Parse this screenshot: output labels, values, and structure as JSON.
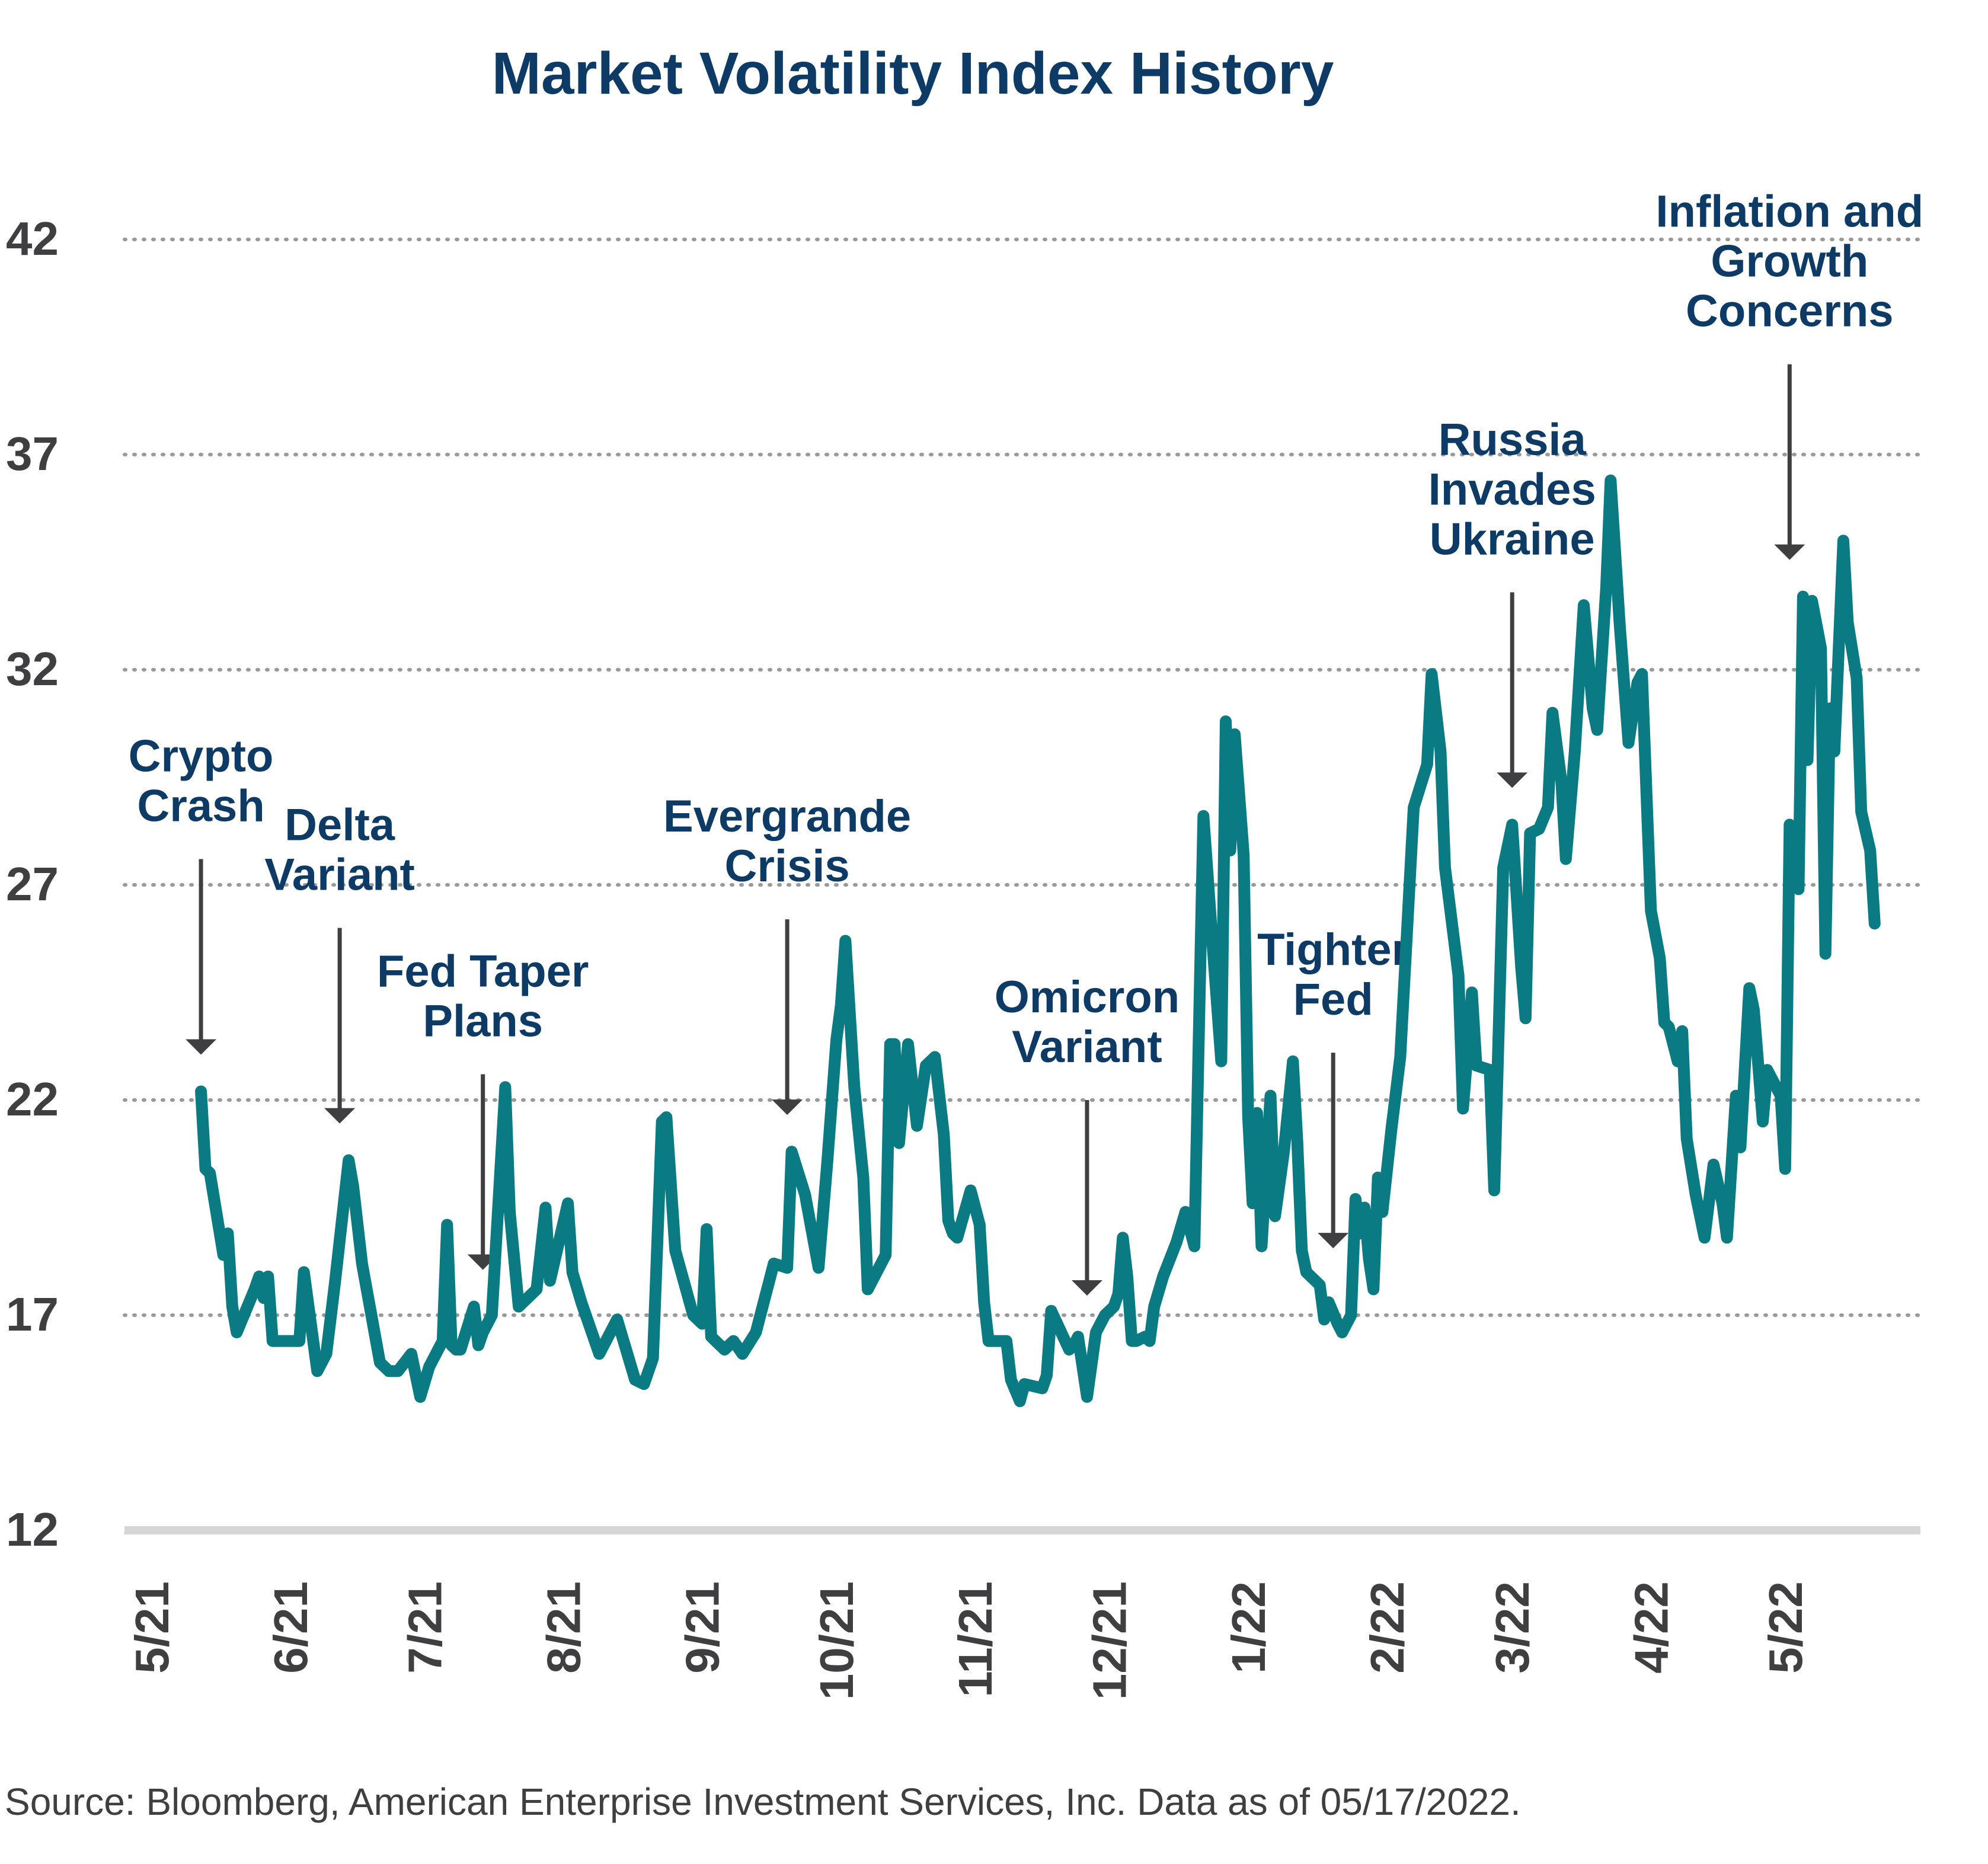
{
  "chart_data": {
    "type": "line",
    "title": "Market Volatility Index History",
    "xlabel": "",
    "ylabel": "",
    "ylim": [
      12,
      42
    ],
    "yticks": [
      "42",
      "37",
      "32",
      "27",
      "22",
      "17",
      "12"
    ],
    "ytick_values": [
      42,
      37,
      32,
      27,
      22,
      17,
      12
    ],
    "xticks": [
      "5/21",
      "6/21",
      "7/21",
      "8/21",
      "9/21",
      "10/21",
      "11/21",
      "12/21",
      "1/22",
      "2/22",
      "3/22",
      "4/22",
      "5/22"
    ],
    "xlim": [
      "2021-05-01",
      "2022-06-15"
    ],
    "grid": true,
    "line_color": "#0a7b83",
    "title_color": "#0d3b66",
    "annotations": [
      {
        "lines": [
          "Crypto",
          "Crash"
        ],
        "date": "2021-05-12"
      },
      {
        "lines": [
          "Delta",
          "Variant"
        ],
        "date": "2021-06-12"
      },
      {
        "lines": [
          "Fed Taper",
          "Plans"
        ],
        "date": "2021-07-14"
      },
      {
        "lines": [
          "Evergrande",
          "Crisis"
        ],
        "date": "2021-09-20"
      },
      {
        "lines": [
          "Omicron",
          "Variant"
        ],
        "date": "2021-11-26"
      },
      {
        "lines": [
          "Tighter",
          "Fed"
        ],
        "date": "2022-01-20"
      },
      {
        "lines": [
          "Russia",
          "Invades",
          "Ukraine"
        ],
        "date": "2022-03-01"
      },
      {
        "lines": [
          "Inflation and",
          "Growth",
          "Concerns"
        ],
        "date": "2022-05-02"
      }
    ],
    "series": [
      {
        "values": [
          [
            "2021-05-12",
            22.2
          ],
          [
            "2021-05-13",
            20.4
          ],
          [
            "2021-05-14",
            20.3
          ],
          [
            "2021-05-17",
            18.4
          ],
          [
            "2021-05-18",
            18.9
          ],
          [
            "2021-05-19",
            17.2
          ],
          [
            "2021-05-20",
            16.6
          ],
          [
            "2021-05-24",
            17.6
          ],
          [
            "2021-05-25",
            17.9
          ],
          [
            "2021-05-26",
            17.4
          ],
          [
            "2021-05-27",
            17.9
          ],
          [
            "2021-05-28",
            16.4
          ],
          [
            "2021-06-01",
            16.4
          ],
          [
            "2021-06-03",
            16.4
          ],
          [
            "2021-06-04",
            18.0
          ],
          [
            "2021-06-07",
            15.7
          ],
          [
            "2021-06-09",
            16.1
          ],
          [
            "2021-06-11",
            17.8
          ],
          [
            "2021-06-14",
            20.6
          ],
          [
            "2021-06-15",
            20.0
          ],
          [
            "2021-06-17",
            18.2
          ],
          [
            "2021-06-21",
            15.9
          ],
          [
            "2021-06-23",
            15.7
          ],
          [
            "2021-06-25",
            15.7
          ],
          [
            "2021-06-28",
            16.1
          ],
          [
            "2021-06-30",
            15.1
          ],
          [
            "2021-07-02",
            15.8
          ],
          [
            "2021-07-05",
            16.4
          ],
          [
            "2021-07-06",
            19.1
          ],
          [
            "2021-07-07",
            16.3
          ],
          [
            "2021-07-08",
            16.2
          ],
          [
            "2021-07-09",
            16.2
          ],
          [
            "2021-07-12",
            17.2
          ],
          [
            "2021-07-13",
            16.3
          ],
          [
            "2021-07-14",
            16.6
          ],
          [
            "2021-07-16",
            17.0
          ],
          [
            "2021-07-19",
            22.3
          ],
          [
            "2021-07-20",
            19.4
          ],
          [
            "2021-07-22",
            17.2
          ],
          [
            "2021-07-26",
            17.6
          ],
          [
            "2021-07-28",
            19.5
          ],
          [
            "2021-07-29",
            17.8
          ],
          [
            "2021-08-02",
            19.6
          ],
          [
            "2021-08-03",
            18.0
          ],
          [
            "2021-08-05",
            17.3
          ],
          [
            "2021-08-09",
            16.1
          ],
          [
            "2021-08-11",
            16.5
          ],
          [
            "2021-08-13",
            16.9
          ],
          [
            "2021-08-17",
            15.5
          ],
          [
            "2021-08-19",
            15.4
          ],
          [
            "2021-08-21",
            16.0
          ],
          [
            "2021-08-23",
            21.5
          ],
          [
            "2021-08-24",
            21.6
          ],
          [
            "2021-08-26",
            18.5
          ],
          [
            "2021-08-30",
            17.0
          ],
          [
            "2021-09-01",
            16.8
          ],
          [
            "2021-09-02",
            19.0
          ],
          [
            "2021-09-03",
            16.5
          ],
          [
            "2021-09-06",
            16.2
          ],
          [
            "2021-09-08",
            16.4
          ],
          [
            "2021-09-10",
            16.1
          ],
          [
            "2021-09-13",
            16.6
          ],
          [
            "2021-09-17",
            18.2
          ],
          [
            "2021-09-20",
            18.1
          ],
          [
            "2021-09-21",
            20.8
          ],
          [
            "2021-09-24",
            19.8
          ],
          [
            "2021-09-27",
            18.1
          ],
          [
            "2021-09-29",
            20.6
          ],
          [
            "2021-10-01",
            23.4
          ],
          [
            "2021-10-02",
            24.2
          ],
          [
            "2021-10-03",
            25.7
          ],
          [
            "2021-10-05",
            22.3
          ],
          [
            "2021-10-07",
            20.2
          ],
          [
            "2021-10-08",
            17.6
          ],
          [
            "2021-10-12",
            18.4
          ],
          [
            "2021-10-13",
            23.3
          ],
          [
            "2021-10-14",
            23.3
          ],
          [
            "2021-10-15",
            21.0
          ],
          [
            "2021-10-17",
            23.3
          ],
          [
            "2021-10-19",
            21.4
          ],
          [
            "2021-10-21",
            22.8
          ],
          [
            "2021-10-23",
            23.0
          ],
          [
            "2021-10-25",
            21.2
          ],
          [
            "2021-10-26",
            19.2
          ],
          [
            "2021-10-27",
            18.9
          ],
          [
            "2021-10-28",
            18.8
          ],
          [
            "2021-10-31",
            19.9
          ],
          [
            "2021-11-02",
            19.1
          ],
          [
            "2021-11-03",
            17.3
          ],
          [
            "2021-11-04",
            16.4
          ],
          [
            "2021-11-08",
            16.4
          ],
          [
            "2021-11-09",
            15.5
          ],
          [
            "2021-11-11",
            15.0
          ],
          [
            "2021-11-12",
            15.4
          ],
          [
            "2021-11-16",
            15.3
          ],
          [
            "2021-11-17",
            15.6
          ],
          [
            "2021-11-18",
            17.1
          ],
          [
            "2021-11-22",
            16.2
          ],
          [
            "2021-11-23",
            16.3
          ],
          [
            "2021-11-24",
            16.5
          ],
          [
            "2021-11-25",
            15.8
          ],
          [
            "2021-11-26",
            15.1
          ],
          [
            "2021-11-28",
            16.6
          ],
          [
            "2021-11-30",
            17.0
          ],
          [
            "2021-12-02",
            17.2
          ],
          [
            "2021-12-03",
            17.5
          ],
          [
            "2021-12-04",
            18.8
          ],
          [
            "2021-12-05",
            17.9
          ],
          [
            "2021-12-06",
            16.4
          ],
          [
            "2021-12-07",
            16.4
          ],
          [
            "2021-12-09",
            16.5
          ],
          [
            "2021-12-10",
            16.4
          ],
          [
            "2021-12-11",
            17.2
          ],
          [
            "2021-12-13",
            17.9
          ],
          [
            "2021-12-16",
            18.7
          ],
          [
            "2021-12-18",
            19.4
          ],
          [
            "2021-12-20",
            18.6
          ],
          [
            "2021-12-22",
            28.6
          ],
          [
            "2021-12-24",
            25.7
          ],
          [
            "2021-12-26",
            22.9
          ],
          [
            "2021-12-27",
            30.8
          ],
          [
            "2021-12-28",
            27.8
          ],
          [
            "2021-12-29",
            30.5
          ],
          [
            "2021-12-31",
            27.7
          ],
          [
            "2022-01-01",
            21.6
          ],
          [
            "2022-01-02",
            19.6
          ],
          [
            "2022-01-03",
            21.7
          ],
          [
            "2022-01-04",
            18.6
          ],
          [
            "2022-01-06",
            22.1
          ],
          [
            "2022-01-07",
            19.3
          ],
          [
            "2022-01-09",
            20.8
          ],
          [
            "2022-01-11",
            22.9
          ],
          [
            "2022-01-12",
            21.0
          ],
          [
            "2022-01-13",
            18.5
          ],
          [
            "2022-01-14",
            18.0
          ],
          [
            "2022-01-17",
            17.7
          ],
          [
            "2022-01-18",
            16.9
          ],
          [
            "2022-01-19",
            17.3
          ],
          [
            "2022-01-21",
            16.8
          ],
          [
            "2022-01-22",
            16.6
          ],
          [
            "2022-01-24",
            17.0
          ],
          [
            "2022-01-25",
            19.7
          ],
          [
            "2022-01-26",
            18.9
          ],
          [
            "2022-01-27",
            19.5
          ],
          [
            "2022-01-28",
            18.3
          ],
          [
            "2022-01-29",
            17.6
          ],
          [
            "2022-01-30",
            20.2
          ],
          [
            "2022-01-31",
            19.4
          ],
          [
            "2022-02-02",
            21.3
          ],
          [
            "2022-02-04",
            23.0
          ],
          [
            "2022-02-07",
            28.8
          ],
          [
            "2022-02-10",
            29.8
          ],
          [
            "2022-02-11",
            31.9
          ],
          [
            "2022-02-13",
            30.1
          ],
          [
            "2022-02-14",
            27.4
          ],
          [
            "2022-02-17",
            24.9
          ],
          [
            "2022-02-18",
            21.8
          ],
          [
            "2022-02-19",
            23.1
          ],
          [
            "2022-02-20",
            24.5
          ],
          [
            "2022-02-21",
            22.8
          ],
          [
            "2022-02-24",
            22.7
          ],
          [
            "2022-02-25",
            19.9
          ],
          [
            "2022-02-27",
            27.4
          ],
          [
            "2022-03-01",
            28.4
          ],
          [
            "2022-03-03",
            25.1
          ],
          [
            "2022-03-04",
            23.9
          ],
          [
            "2022-03-05",
            28.2
          ],
          [
            "2022-03-07",
            28.3
          ],
          [
            "2022-03-09",
            28.8
          ],
          [
            "2022-03-10",
            31.0
          ],
          [
            "2022-03-12",
            29.4
          ],
          [
            "2022-03-13",
            27.6
          ],
          [
            "2022-03-15",
            30.1
          ],
          [
            "2022-03-17",
            33.5
          ],
          [
            "2022-03-19",
            31.1
          ],
          [
            "2022-03-20",
            30.6
          ],
          [
            "2022-03-22",
            33.9
          ],
          [
            "2022-03-23",
            36.4
          ],
          [
            "2022-03-25",
            33.1
          ],
          [
            "2022-03-27",
            30.3
          ],
          [
            "2022-03-29",
            31.7
          ],
          [
            "2022-03-30",
            31.9
          ],
          [
            "2022-04-01",
            26.4
          ],
          [
            "2022-04-03",
            25.3
          ],
          [
            "2022-04-04",
            23.8
          ],
          [
            "2022-04-05",
            23.7
          ],
          [
            "2022-04-07",
            22.9
          ],
          [
            "2022-04-08",
            23.6
          ],
          [
            "2022-04-09",
            21.1
          ],
          [
            "2022-04-11",
            19.8
          ],
          [
            "2022-04-13",
            18.8
          ],
          [
            "2022-04-15",
            20.5
          ],
          [
            "2022-04-17",
            19.6
          ],
          [
            "2022-04-18",
            18.8
          ],
          [
            "2022-04-20",
            22.1
          ],
          [
            "2022-04-21",
            20.9
          ],
          [
            "2022-04-23",
            24.6
          ],
          [
            "2022-04-24",
            24.1
          ],
          [
            "2022-04-26",
            21.5
          ],
          [
            "2022-04-27",
            22.7
          ],
          [
            "2022-04-29",
            22.3
          ],
          [
            "2022-04-30",
            22.1
          ],
          [
            "2022-05-01",
            20.4
          ],
          [
            "2022-05-02",
            28.4
          ],
          [
            "2022-05-04",
            26.9
          ],
          [
            "2022-05-05",
            33.7
          ],
          [
            "2022-05-06",
            29.9
          ],
          [
            "2022-05-07",
            33.6
          ],
          [
            "2022-05-09",
            32.5
          ],
          [
            "2022-05-10",
            25.4
          ],
          [
            "2022-05-11",
            31.1
          ],
          [
            "2022-05-12",
            30.1
          ],
          [
            "2022-05-14",
            35.0
          ],
          [
            "2022-05-15",
            33.1
          ],
          [
            "2022-05-17",
            31.8
          ],
          [
            "2022-05-18",
            28.7
          ],
          [
            "2022-05-20",
            27.8
          ],
          [
            "2022-05-21",
            26.1
          ]
        ]
      }
    ]
  },
  "footer": {
    "source": "Source: Bloomberg, American Enterprise Investment Services, Inc. Data as of 05/17/2022."
  }
}
